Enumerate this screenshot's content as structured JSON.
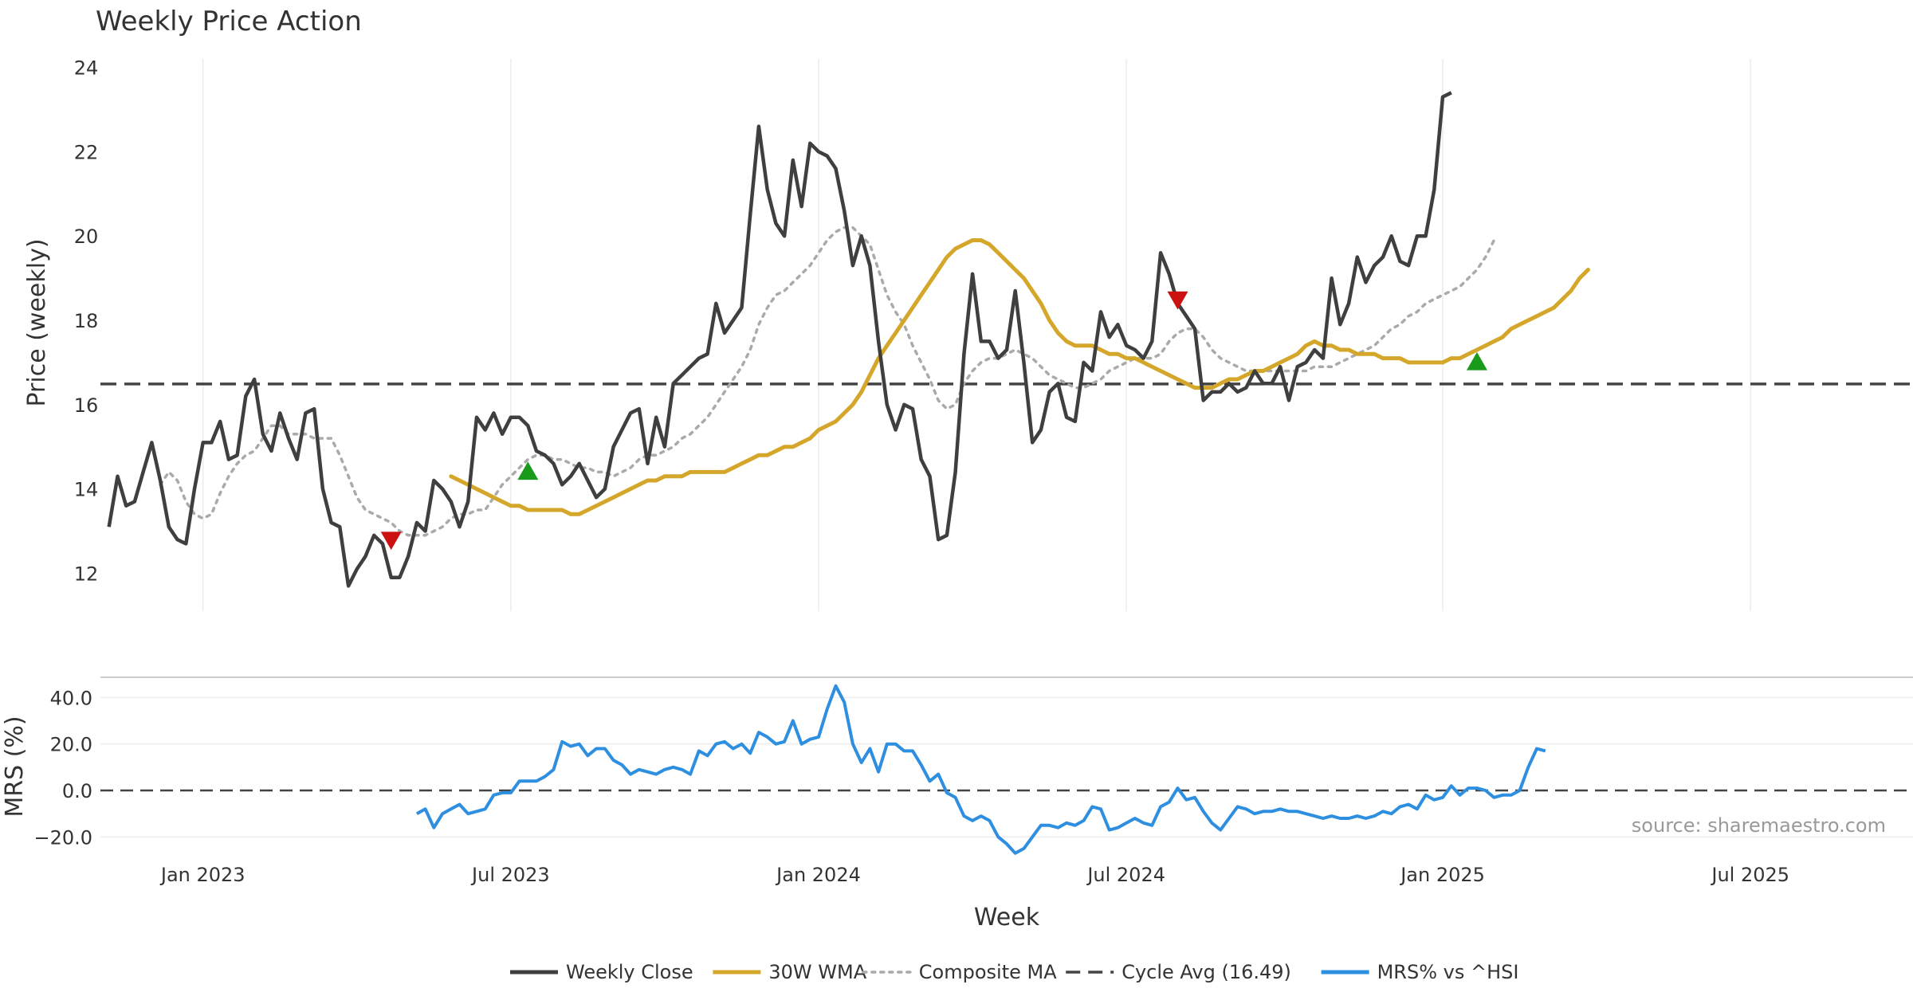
{
  "chart_data": {
    "type": "line",
    "title": "Weekly Price Action",
    "xlabel": "Week",
    "x_ticks": [
      "Jan 2023",
      "Jul 2023",
      "Jan 2024",
      "Jul 2024",
      "Jan 2025",
      "Jul 2025"
    ],
    "x_tick_weeks": [
      11,
      47,
      83,
      119,
      156,
      192
    ],
    "x_range_weeks": [
      -1,
      211
    ],
    "price_panel": {
      "ylabel": "Price (weekly)",
      "ylim": [
        11.1,
        24.2
      ],
      "yticks": [
        12,
        14,
        16,
        18,
        20,
        22,
        24
      ],
      "cycle_avg": 16.49,
      "series": [
        {
          "name": "Weekly Close",
          "color": "#3f3f3f",
          "start_week": 0,
          "values": [
            13.1,
            14.3,
            13.6,
            13.7,
            14.4,
            15.1,
            14.2,
            13.1,
            12.8,
            12.7,
            14.0,
            15.1,
            15.1,
            15.6,
            14.7,
            14.8,
            16.2,
            16.6,
            15.3,
            14.9,
            15.8,
            15.2,
            14.7,
            15.8,
            15.9,
            14.0,
            13.2,
            13.1,
            11.7,
            12.1,
            12.4,
            12.9,
            12.7,
            11.9,
            11.9,
            12.4,
            13.2,
            13.0,
            14.2,
            14.0,
            13.7,
            13.1,
            13.7,
            15.7,
            15.4,
            15.8,
            15.3,
            15.7,
            15.7,
            15.5,
            14.9,
            14.8,
            14.6,
            14.1,
            14.3,
            14.6,
            14.2,
            13.8,
            14.0,
            15.0,
            15.4,
            15.8,
            15.9,
            14.6,
            15.7,
            15.0,
            16.5,
            16.7,
            16.9,
            17.1,
            17.2,
            18.4,
            17.7,
            18.0,
            18.3,
            20.5,
            22.6,
            21.1,
            20.3,
            20.0,
            21.8,
            20.7,
            22.2,
            22.0,
            21.9,
            21.6,
            20.6,
            19.3,
            20.0,
            19.3,
            17.5,
            16.0,
            15.4,
            16.0,
            15.9,
            14.7,
            14.3,
            12.8,
            12.9,
            14.4,
            17.2,
            19.1,
            17.5,
            17.5,
            17.1,
            17.3,
            18.7,
            17.0,
            15.1,
            15.4,
            16.3,
            16.5,
            15.7,
            15.6,
            17.0,
            16.8,
            18.2,
            17.6,
            17.9,
            17.4,
            17.3,
            17.1,
            17.5,
            19.6,
            19.1,
            18.4,
            18.1,
            17.8,
            16.1,
            16.3,
            16.3,
            16.5,
            16.3,
            16.4,
            16.8,
            16.5,
            16.5,
            16.9,
            16.1,
            16.9,
            17.0,
            17.3,
            17.1,
            19.0,
            17.9,
            18.4,
            19.5,
            18.9,
            19.3,
            19.5,
            20.0,
            19.4,
            19.3,
            20.0,
            20.0,
            21.1,
            23.3,
            23.4
          ]
        },
        {
          "name": "30W WMA",
          "color": "#d4a62a",
          "start_week": 40,
          "values": [
            14.3,
            14.2,
            14.1,
            14.0,
            13.9,
            13.8,
            13.7,
            13.6,
            13.6,
            13.5,
            13.5,
            13.5,
            13.5,
            13.5,
            13.4,
            13.4,
            13.5,
            13.6,
            13.7,
            13.8,
            13.9,
            14.0,
            14.1,
            14.2,
            14.2,
            14.3,
            14.3,
            14.3,
            14.4,
            14.4,
            14.4,
            14.4,
            14.4,
            14.5,
            14.6,
            14.7,
            14.8,
            14.8,
            14.9,
            15.0,
            15.0,
            15.1,
            15.2,
            15.4,
            15.5,
            15.6,
            15.8,
            16.0,
            16.3,
            16.7,
            17.1,
            17.4,
            17.7,
            18.0,
            18.3,
            18.6,
            18.9,
            19.2,
            19.5,
            19.7,
            19.8,
            19.9,
            19.9,
            19.8,
            19.6,
            19.4,
            19.2,
            19.0,
            18.7,
            18.4,
            18.0,
            17.7,
            17.5,
            17.4,
            17.4,
            17.4,
            17.3,
            17.2,
            17.2,
            17.1,
            17.1,
            17.0,
            16.9,
            16.8,
            16.7,
            16.6,
            16.5,
            16.4,
            16.4,
            16.4,
            16.5,
            16.6,
            16.6,
            16.7,
            16.8,
            16.8,
            16.9,
            17.0,
            17.1,
            17.2,
            17.4,
            17.5,
            17.4,
            17.4,
            17.3,
            17.3,
            17.2,
            17.2,
            17.2,
            17.1,
            17.1,
            17.1,
            17.0,
            17.0,
            17.0,
            17.0,
            17.0,
            17.1,
            17.1,
            17.2,
            17.3,
            17.4,
            17.5,
            17.6,
            17.8,
            17.9,
            18.0,
            18.1,
            18.2,
            18.3,
            18.5,
            18.7,
            19.0,
            19.2
          ]
        },
        {
          "name": "Composite MA",
          "color": "#aaaaaa",
          "start_week": 6,
          "values": [
            14.1,
            14.4,
            14.2,
            13.7,
            13.4,
            13.3,
            13.4,
            13.9,
            14.3,
            14.6,
            14.8,
            14.9,
            15.2,
            15.5,
            15.5,
            15.3,
            15.3,
            15.3,
            15.2,
            15.2,
            15.2,
            14.8,
            14.3,
            13.8,
            13.5,
            13.4,
            13.3,
            13.2,
            13.0,
            12.9,
            12.9,
            12.9,
            13.0,
            13.1,
            13.3,
            13.4,
            13.4,
            13.5,
            13.5,
            13.8,
            14.1,
            14.3,
            14.5,
            14.7,
            14.8,
            14.8,
            14.7,
            14.7,
            14.6,
            14.5,
            14.5,
            14.4,
            14.4,
            14.3,
            14.4,
            14.5,
            14.7,
            14.8,
            14.8,
            14.9,
            15.0,
            15.2,
            15.3,
            15.5,
            15.7,
            16.0,
            16.3,
            16.6,
            16.9,
            17.3,
            17.9,
            18.3,
            18.6,
            18.7,
            18.9,
            19.1,
            19.3,
            19.6,
            19.9,
            20.1,
            20.2,
            20.2,
            20.0,
            19.8,
            19.2,
            18.6,
            18.2,
            17.9,
            17.4,
            17.0,
            16.6,
            16.1,
            15.9,
            16.0,
            16.5,
            16.8,
            17.0,
            17.1,
            17.1,
            17.2,
            17.3,
            17.2,
            17.1,
            16.9,
            16.7,
            16.6,
            16.5,
            16.4,
            16.4,
            16.5,
            16.6,
            16.8,
            16.9,
            17.0,
            17.1,
            17.1,
            17.1,
            17.2,
            17.5,
            17.7,
            17.8,
            17.8,
            17.6,
            17.3,
            17.1,
            17.0,
            16.9,
            16.8,
            16.8,
            16.8,
            16.8,
            16.8,
            16.8,
            16.8,
            16.8,
            16.9,
            16.9,
            16.9,
            17.0,
            17.1,
            17.2,
            17.3,
            17.4,
            17.6,
            17.8,
            17.9,
            18.1,
            18.2,
            18.4,
            18.5,
            18.6,
            18.7,
            18.8,
            19.0,
            19.2,
            19.5,
            19.9
          ]
        }
      ],
      "signals": [
        {
          "type": "sell",
          "week": 33,
          "value": 12.8,
          "color": "#cc1111"
        },
        {
          "type": "buy",
          "week": 49,
          "value": 14.4,
          "color": "#1a9a1a"
        },
        {
          "type": "sell",
          "week": 125,
          "value": 18.5,
          "color": "#cc1111"
        },
        {
          "type": "buy",
          "week": 160,
          "value": 17.0,
          "color": "#1a9a1a"
        }
      ]
    },
    "mrs_panel": {
      "ylabel": "MRS (%)",
      "ylim": [
        -24,
        48
      ],
      "yticks": [
        40.0,
        20.0,
        0.0,
        -20.0
      ],
      "ytick_labels": [
        "40.0",
        "20.0",
        "0.0",
        "−20.0"
      ],
      "series": [
        {
          "name": "MRS% vs ^HSI",
          "color": "#2e8fe0",
          "start_week": 36,
          "values": [
            -10,
            -8,
            -16,
            -10,
            -8,
            -6,
            -10,
            -9,
            -8,
            -2,
            -1,
            -1,
            4,
            4,
            4,
            6,
            9,
            21,
            19,
            20,
            15,
            18,
            18,
            13,
            11,
            7,
            9,
            8,
            7,
            9,
            10,
            9,
            7,
            17,
            15,
            20,
            21,
            18,
            20,
            16,
            25,
            23,
            20,
            21,
            30,
            20,
            22,
            23,
            35,
            45,
            38,
            20,
            12,
            18,
            8,
            20,
            20,
            17,
            17,
            11,
            4,
            7,
            -1,
            -3,
            -11,
            -13,
            -11,
            -13,
            -20,
            -23,
            -27,
            -25,
            -20,
            -15,
            -15,
            -16,
            -14,
            -15,
            -13,
            -7,
            -8,
            -17,
            -16,
            -14,
            -12,
            -14,
            -15,
            -7,
            -5,
            1,
            -4,
            -3,
            -9,
            -14,
            -17,
            -12,
            -7,
            -8,
            -10,
            -9,
            -9,
            -8,
            -9,
            -9,
            -10,
            -11,
            -12,
            -11,
            -12,
            -12,
            -11,
            -12,
            -11,
            -9,
            -10,
            -7,
            -6,
            -8,
            -2,
            -4,
            -3,
            2,
            -2,
            1,
            1,
            0,
            -3,
            -2,
            -2,
            0,
            10,
            18,
            17
          ]
        }
      ],
      "source": "source: sharemaestro.com"
    },
    "legend": {
      "placement": "bottom-center",
      "entries": [
        {
          "label": "Weekly Close",
          "color": "#3f3f3f",
          "style": "solid"
        },
        {
          "label": "30W WMA",
          "color": "#d4a62a",
          "style": "solid"
        },
        {
          "label": "Composite MA",
          "color": "#aaaaaa",
          "style": "dotted"
        },
        {
          "label": "Cycle Avg (16.49)",
          "color": "#444444",
          "style": "dashed"
        },
        {
          "label": "MRS% vs ^HSI",
          "color": "#2e8fe0",
          "style": "solid"
        }
      ]
    }
  }
}
